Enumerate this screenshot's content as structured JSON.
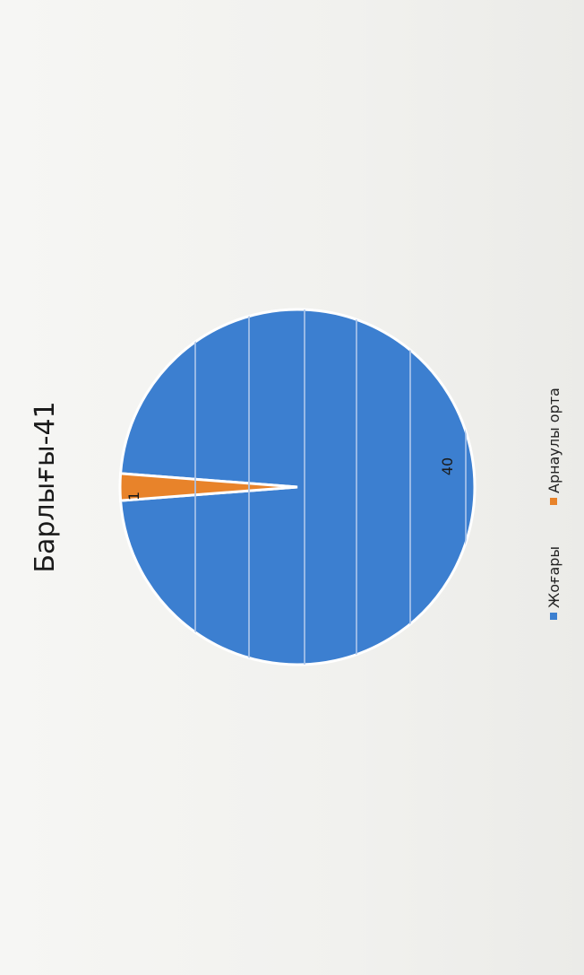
{
  "chart_data": {
    "type": "pie",
    "title": "Барлығы-41",
    "slices": [
      {
        "label": "Жоғары",
        "value": 40,
        "color": "#3c7fd0"
      },
      {
        "label": "Арнаулы орта",
        "value": 1,
        "color": "#e8832a"
      }
    ],
    "data_labels": [
      "40",
      "1"
    ],
    "legend": {
      "position": "bottom",
      "items": [
        "Жоғары",
        "Арнаулы орта"
      ]
    },
    "orientation": "rotated-90-ccw"
  }
}
